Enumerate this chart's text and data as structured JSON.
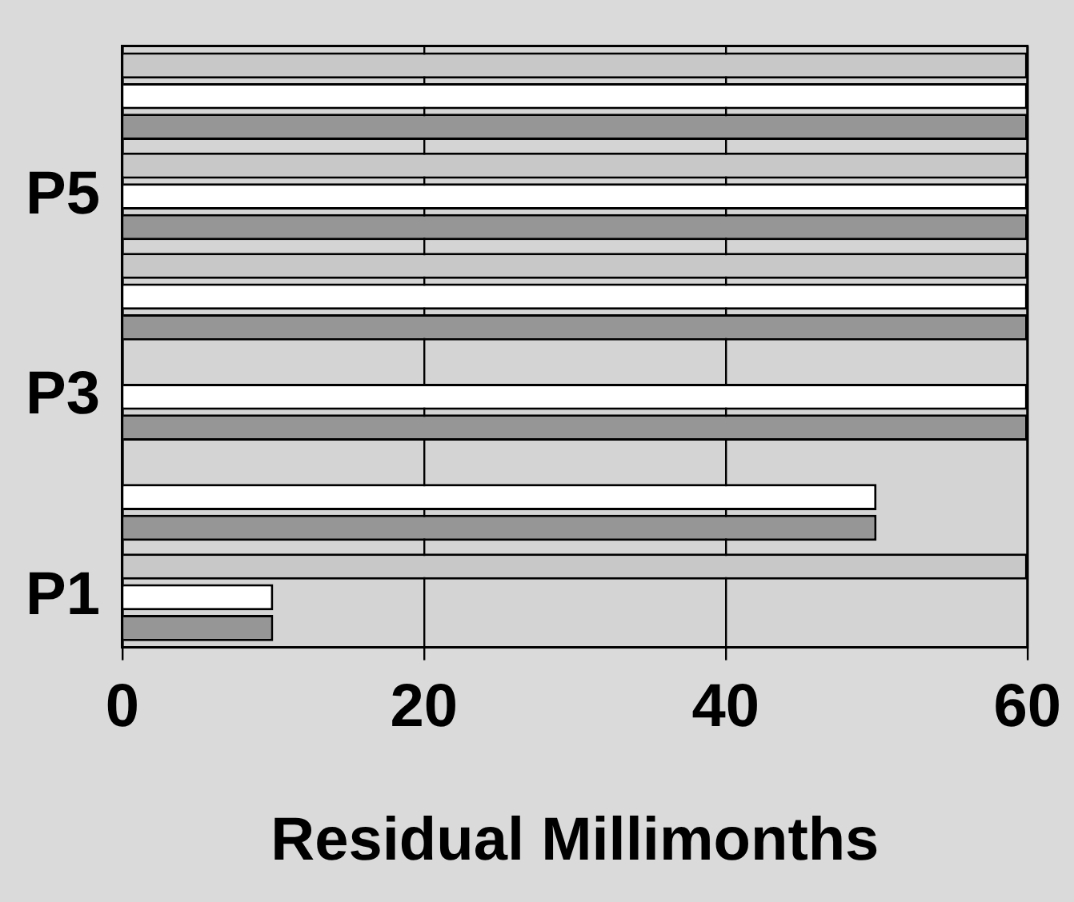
{
  "chart_data": {
    "type": "bar",
    "orientation": "horizontal",
    "xlabel": "Residual Millimonths",
    "categories": [
      null,
      "P5",
      null,
      "P3",
      null,
      "P1"
    ],
    "series": [
      {
        "color": "#c8c8c8",
        "values": [
          60,
          60,
          60,
          0,
          0,
          60
        ]
      },
      {
        "color": "#ffffff",
        "values": [
          60,
          60,
          60,
          60,
          50,
          10
        ]
      },
      {
        "color": "#969696",
        "values": [
          60,
          60,
          60,
          60,
          50,
          10
        ]
      }
    ],
    "xlim": [
      0,
      60
    ],
    "xticks": [
      0,
      20,
      40,
      60
    ],
    "grid": "x",
    "legend": false
  }
}
